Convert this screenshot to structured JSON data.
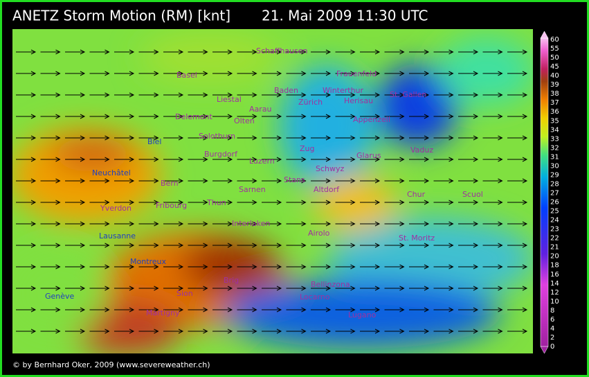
{
  "header": {
    "title": "ANETZ Storm Motion (RM) [knt]",
    "timestamp": "21. Mai 2009 11:30 UTC"
  },
  "map": {
    "places": [
      "Schaffhausen",
      "Basel",
      "Frauenfeld",
      "Winterthur",
      "Baden",
      "St. Gallen",
      "Liestal",
      "Zürich",
      "Herisau",
      "Delemont",
      "Aarau",
      "Olten",
      "Appenzell",
      "Solothurn",
      "Biel",
      "Burgdorf",
      "Zug",
      "Glarus",
      "Vaduz",
      "Luzern",
      "Neuchâtel",
      "Schwyz",
      "Stans",
      "Bern",
      "Sarnen",
      "Altdorf",
      "Chur",
      "Scuol",
      "Yverdon",
      "Fribourg",
      "Thun",
      "Interlaken",
      "Airolo",
      "Lausanne",
      "St. Moritz",
      "Montreux",
      "Brig",
      "Bellinzona",
      "Genève",
      "Sion",
      "Locarno",
      "Martigny",
      "Lugano"
    ]
  },
  "legend": {
    "labels": [
      60,
      55,
      50,
      45,
      40,
      39,
      38,
      37,
      36,
      35,
      34,
      33,
      32,
      31,
      30,
      29,
      28,
      27,
      26,
      25,
      24,
      23,
      22,
      21,
      20,
      18,
      16,
      14,
      12,
      10,
      8,
      6,
      4,
      2,
      0
    ]
  },
  "footer": {
    "credit": "© by Bernhard Oker, 2009 (www.severeweather.ch)"
  }
}
